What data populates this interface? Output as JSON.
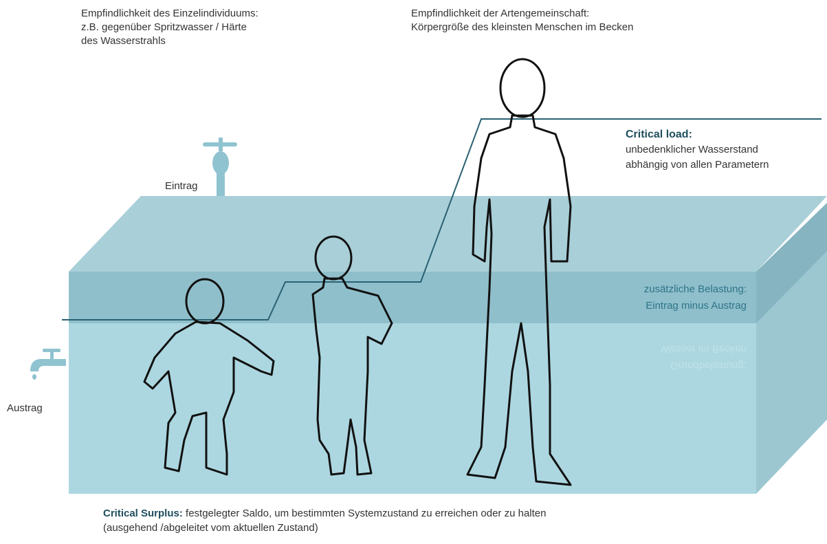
{
  "individual": {
    "lines": [
      "Empfindlichkeit des Einzelindividuums:",
      "z.B. gegenüber Spritzwasser / Härte",
      "des Wasserstrahls"
    ]
  },
  "community": {
    "lines": [
      "Empfindlichkeit der Artengemeinschaft:",
      "Körpergröße des kleinsten Menschen im Becken"
    ]
  },
  "inflow": "Eintrag",
  "outflow": "Austrag",
  "critical_load": {
    "title": "Critical load:",
    "lines": [
      "unbedenklicher Wasserstand",
      "abhängig von allen Parametern"
    ]
  },
  "additional_load": {
    "lines": [
      "zusätzliche Belastung:",
      "Eintrag minus Austrag"
    ]
  },
  "base_load": {
    "lines": [
      "Grundbelastung:",
      "Wasser im Becken"
    ]
  },
  "critical_surplus": {
    "title": "Critical Surplus:",
    "text": "festgelegter Saldo, um bestimmten Systemzustand zu erreichen oder zu halten",
    "note": "(ausgehend /abgeleitet vom aktuellen Zustand)"
  }
}
